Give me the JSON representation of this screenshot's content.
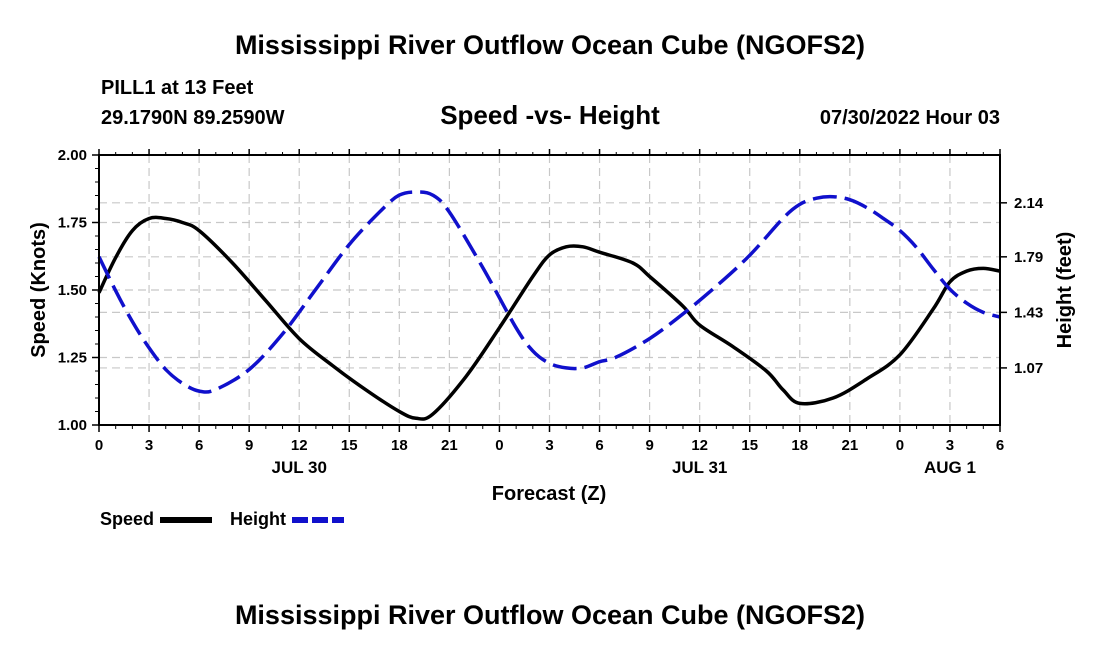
{
  "header": {
    "title": "Mississippi River Outflow Ocean Cube (NGOFS2)",
    "station": "PILL1 at 13 Feet",
    "coords": "29.1790N  89.2590W",
    "datetime": "07/30/2022 Hour 03"
  },
  "footer": {
    "title": "Mississippi River Outflow Ocean Cube (NGOFS2)"
  },
  "chart_data": {
    "type": "line",
    "title": "Speed -vs- Height",
    "xlabel": "Forecast (Z)",
    "ylabel": "Speed (Knots)",
    "y2label": "Height (feet)",
    "xlim": [
      0,
      54
    ],
    "ylim": [
      1.0,
      2.0
    ],
    "y2lim": [
      0.7,
      2.45
    ],
    "x_ticks": [
      0,
      3,
      6,
      9,
      12,
      15,
      18,
      21,
      24,
      27,
      30,
      33,
      36,
      39,
      42,
      45,
      48,
      51,
      54
    ],
    "x_tick_labels": [
      "0",
      "3",
      "6",
      "9",
      "12",
      "15",
      "18",
      "21",
      "0",
      "3",
      "6",
      "9",
      "12",
      "15",
      "18",
      "21",
      "0",
      "3",
      "6"
    ],
    "date_labels": [
      {
        "x": 12,
        "label": "JUL 30"
      },
      {
        "x": 36,
        "label": "JUL 31"
      },
      {
        "x": 51,
        "label": "AUG 1"
      }
    ],
    "y_ticks": [
      1.0,
      1.25,
      1.5,
      1.75,
      2.0
    ],
    "y_tick_labels": [
      "1.00",
      "1.25",
      "1.50",
      "1.75",
      "2.00"
    ],
    "y2_ticks": [
      1.07,
      1.43,
      1.79,
      2.14
    ],
    "y2_tick_labels": [
      "1.07",
      "1.43",
      "1.79",
      "2.14"
    ],
    "grid": true,
    "legend": [
      "Speed",
      "Height"
    ],
    "series": [
      {
        "name": "Speed",
        "axis": "left",
        "color": "#000000",
        "dash": "solid",
        "x": [
          0,
          1,
          2,
          3,
          4,
          5,
          6,
          8,
          10,
          12,
          14,
          16,
          18,
          19,
          20,
          22,
          24,
          26,
          27,
          28,
          29,
          30,
          32,
          33,
          35,
          36,
          38,
          40,
          41,
          42,
          44,
          46,
          48,
          50,
          51,
          52,
          53,
          54
        ],
        "values": [
          1.49,
          1.62,
          1.72,
          1.765,
          1.765,
          1.75,
          1.72,
          1.6,
          1.46,
          1.32,
          1.22,
          1.13,
          1.05,
          1.025,
          1.04,
          1.18,
          1.36,
          1.55,
          1.63,
          1.66,
          1.66,
          1.64,
          1.6,
          1.55,
          1.44,
          1.37,
          1.29,
          1.2,
          1.13,
          1.08,
          1.1,
          1.17,
          1.26,
          1.43,
          1.53,
          1.57,
          1.58,
          1.57
        ]
      },
      {
        "name": "Height",
        "axis": "right",
        "color": "#1010cc",
        "dash": "dashed",
        "x": [
          0,
          1,
          2,
          3,
          4,
          5,
          6,
          7,
          9,
          11,
          13,
          15,
          17,
          18,
          19,
          20,
          21,
          23,
          25,
          26,
          27,
          28,
          29,
          30,
          31,
          33,
          35,
          37,
          39,
          41,
          42,
          43,
          44,
          45,
          46,
          47,
          48,
          49,
          50,
          51,
          52,
          53,
          54
        ],
        "values": [
          1.79,
          1.57,
          1.37,
          1.2,
          1.06,
          0.97,
          0.92,
          0.93,
          1.06,
          1.29,
          1.58,
          1.87,
          2.1,
          2.19,
          2.21,
          2.19,
          2.08,
          1.72,
          1.33,
          1.18,
          1.1,
          1.07,
          1.07,
          1.11,
          1.14,
          1.26,
          1.42,
          1.6,
          1.8,
          2.04,
          2.13,
          2.17,
          2.18,
          2.16,
          2.11,
          2.04,
          1.96,
          1.85,
          1.71,
          1.58,
          1.49,
          1.43,
          1.4
        ]
      }
    ]
  }
}
